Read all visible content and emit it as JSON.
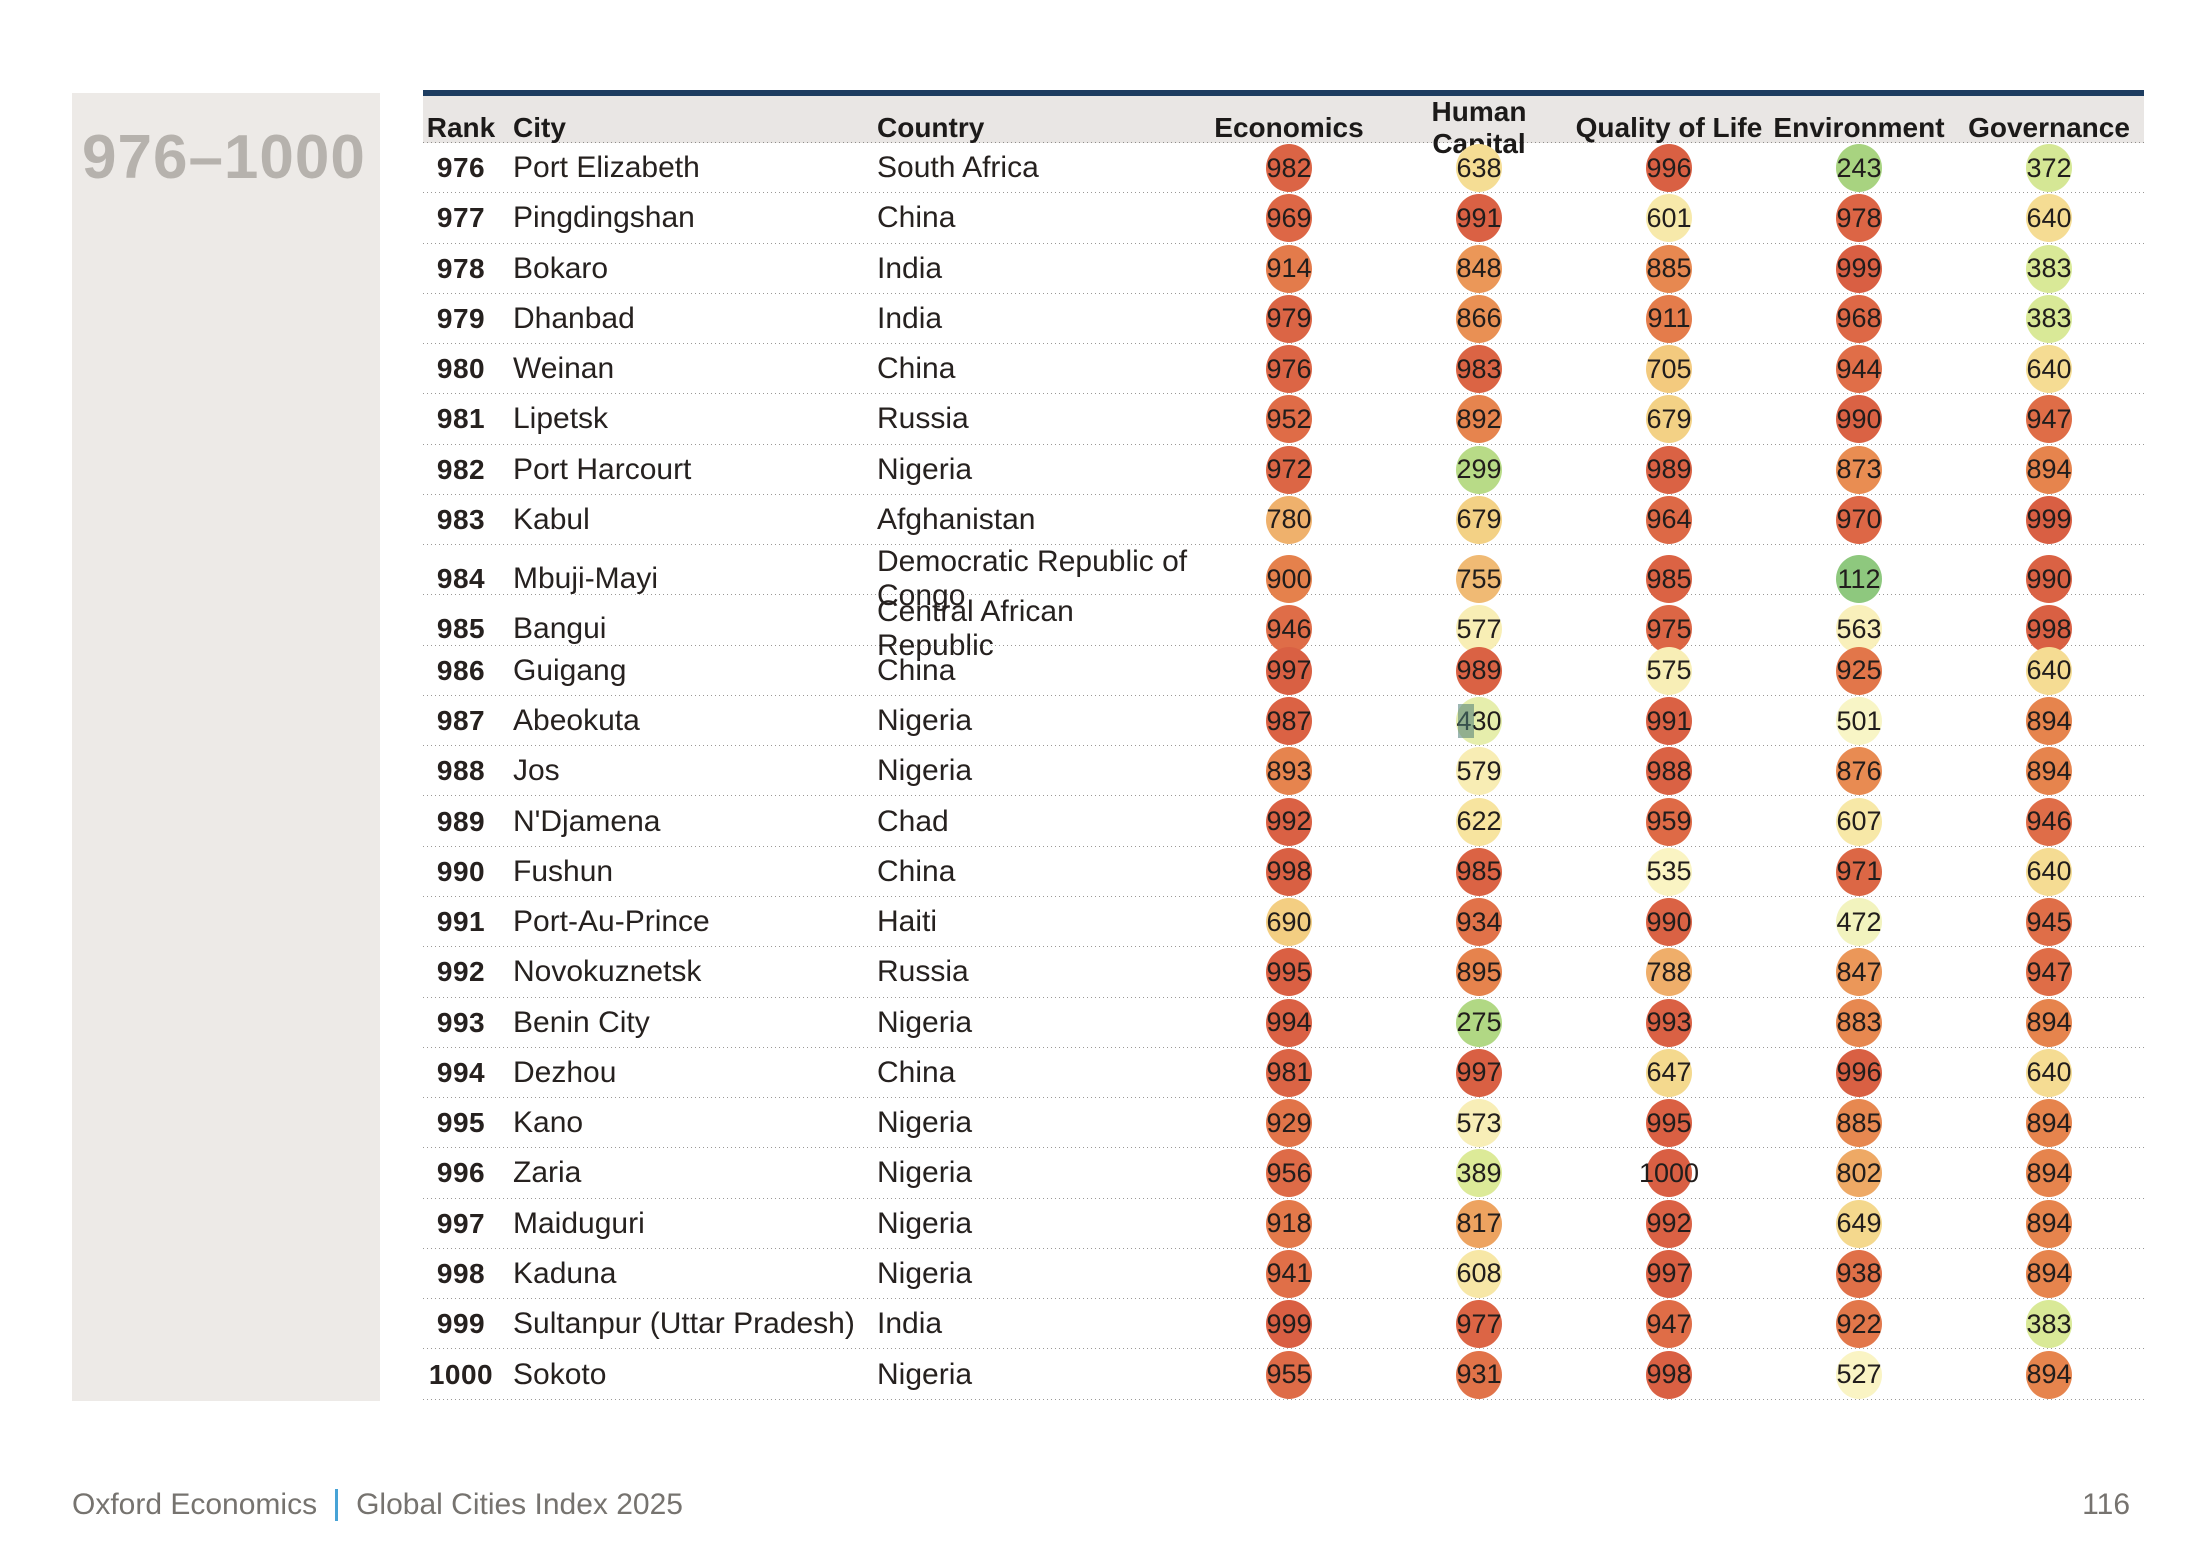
{
  "page": {
    "range_label": "976–1000",
    "page_number": "116"
  },
  "footer": {
    "brand": "Oxford Economics",
    "separator": "|",
    "title": "Global Cities Index 2025"
  },
  "table": {
    "columns": [
      "Rank",
      "City",
      "Country",
      "Economics",
      "Human Capital",
      "Quality of Life",
      "Environment",
      "Governance"
    ],
    "rows": [
      {
        "rank": 976,
        "city": "Port Elizabeth",
        "country": "South Africa",
        "scores": [
          982,
          638,
          996,
          243,
          372
        ]
      },
      {
        "rank": 977,
        "city": "Pingdingshan",
        "country": "China",
        "scores": [
          969,
          991,
          601,
          978,
          640
        ]
      },
      {
        "rank": 978,
        "city": "Bokaro",
        "country": "India",
        "scores": [
          914,
          848,
          885,
          999,
          383
        ]
      },
      {
        "rank": 979,
        "city": "Dhanbad",
        "country": "India",
        "scores": [
          979,
          866,
          911,
          968,
          383
        ]
      },
      {
        "rank": 980,
        "city": "Weinan",
        "country": "China",
        "scores": [
          976,
          983,
          705,
          944,
          640
        ]
      },
      {
        "rank": 981,
        "city": "Lipetsk",
        "country": "Russia",
        "scores": [
          952,
          892,
          679,
          990,
          947
        ]
      },
      {
        "rank": 982,
        "city": "Port Harcourt",
        "country": "Nigeria",
        "scores": [
          972,
          299,
          989,
          873,
          894
        ]
      },
      {
        "rank": 983,
        "city": "Kabul",
        "country": "Afghanistan",
        "scores": [
          780,
          679,
          964,
          970,
          999
        ]
      },
      {
        "rank": 984,
        "city": "Mbuji-Mayi",
        "country": "Democratic Republic of Congo",
        "scores": [
          900,
          755,
          985,
          112,
          990
        ]
      },
      {
        "rank": 985,
        "city": "Bangui",
        "country": "Central African Republic",
        "scores": [
          946,
          577,
          975,
          563,
          998
        ]
      },
      {
        "rank": 986,
        "city": "Guigang",
        "country": "China",
        "scores": [
          997,
          989,
          575,
          925,
          640
        ]
      },
      {
        "rank": 987,
        "city": "Abeokuta",
        "country": "Nigeria",
        "scores": [
          987,
          430,
          991,
          501,
          894
        ]
      },
      {
        "rank": 988,
        "city": "Jos",
        "country": "Nigeria",
        "scores": [
          893,
          579,
          988,
          876,
          894
        ]
      },
      {
        "rank": 989,
        "city": "N'Djamena",
        "country": "Chad",
        "scores": [
          992,
          622,
          959,
          607,
          946
        ]
      },
      {
        "rank": 990,
        "city": "Fushun",
        "country": "China",
        "scores": [
          998,
          985,
          535,
          971,
          640
        ]
      },
      {
        "rank": 991,
        "city": "Port-Au-Prince",
        "country": "Haiti",
        "scores": [
          690,
          934,
          990,
          472,
          945
        ]
      },
      {
        "rank": 992,
        "city": "Novokuznetsk",
        "country": "Russia",
        "scores": [
          995,
          895,
          788,
          847,
          947
        ]
      },
      {
        "rank": 993,
        "city": "Benin City",
        "country": "Nigeria",
        "scores": [
          994,
          275,
          993,
          883,
          894
        ]
      },
      {
        "rank": 994,
        "city": "Dezhou",
        "country": "China",
        "scores": [
          981,
          997,
          647,
          996,
          640
        ]
      },
      {
        "rank": 995,
        "city": "Kano",
        "country": "Nigeria",
        "scores": [
          929,
          573,
          995,
          885,
          894
        ]
      },
      {
        "rank": 996,
        "city": "Zaria",
        "country": "Nigeria",
        "scores": [
          956,
          389,
          1000,
          802,
          894
        ]
      },
      {
        "rank": 997,
        "city": "Maiduguri",
        "country": "Nigeria",
        "scores": [
          918,
          817,
          992,
          649,
          894
        ]
      },
      {
        "rank": 998,
        "city": "Kaduna",
        "country": "Nigeria",
        "scores": [
          941,
          608,
          997,
          938,
          894
        ]
      },
      {
        "rank": 999,
        "city": "Sultanpur (Uttar Pradesh)",
        "country": "India",
        "scores": [
          999,
          977,
          947,
          922,
          383
        ]
      },
      {
        "rank": 1000,
        "city": "Sokoto",
        "country": "Nigeria",
        "scores": [
          955,
          931,
          998,
          527,
          894
        ]
      }
    ]
  },
  "score_colormap": [
    [
      0,
      "#82c173"
    ],
    [
      112,
      "#8ec87e"
    ],
    [
      250,
      "#a9d480"
    ],
    [
      300,
      "#b8db87"
    ],
    [
      390,
      "#dcea98"
    ],
    [
      435,
      "#e7efae"
    ],
    [
      475,
      "#f3f3bf"
    ],
    [
      505,
      "#f9f5c7"
    ],
    [
      545,
      "#faf3c2"
    ],
    [
      580,
      "#f8edb4"
    ],
    [
      620,
      "#f7e5a0"
    ],
    [
      650,
      "#f4d88c"
    ],
    [
      705,
      "#f3ca7e"
    ],
    [
      760,
      "#f0b873"
    ],
    [
      820,
      "#eda25f"
    ],
    [
      870,
      "#e98e53"
    ],
    [
      900,
      "#e5814c"
    ],
    [
      940,
      "#e06f48"
    ],
    [
      1000,
      "#d95f43"
    ]
  ],
  "selection_highlight": {
    "row_rank": 987,
    "score_index": 1,
    "color": "rgba(77, 124, 118, 0.55)"
  }
}
